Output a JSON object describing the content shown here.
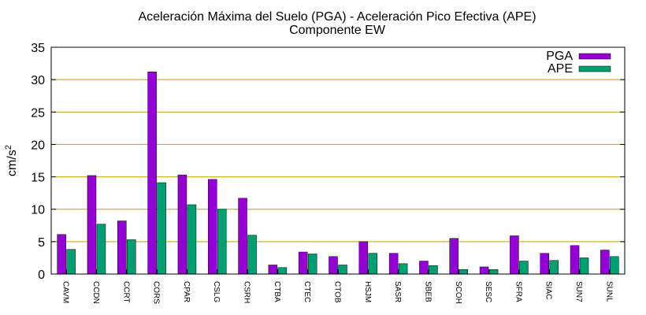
{
  "chart_data": {
    "type": "bar",
    "title": "Aceleración Máxima del Suelo (PGA) -  Aceleración Pico Efectiva (APE)",
    "subtitle": "Componente EW",
    "ylabel": "cm/s",
    "ylabel_sup": "2",
    "ylim": [
      0,
      35
    ],
    "yticks": [
      0,
      5,
      10,
      15,
      20,
      25,
      30,
      35
    ],
    "grid": "horizontal",
    "legend_position": "top-right",
    "categories": [
      "CAVM",
      "CCDN",
      "CCRT",
      "CORS",
      "CPAR",
      "CSLG",
      "CSRH",
      "CTBA",
      "CTEC",
      "CTOB",
      "HSJM",
      "SASR",
      "SBEB",
      "SCOH",
      "SESC",
      "SFRA",
      "SIAC",
      "SUN7",
      "SUNL"
    ],
    "series": [
      {
        "name": "PGA",
        "color": "#9400d3",
        "values": [
          6.1,
          15.2,
          8.2,
          31.2,
          15.3,
          14.6,
          11.7,
          1.4,
          3.4,
          2.7,
          5.0,
          3.2,
          2.0,
          5.5,
          1.1,
          5.9,
          3.2,
          4.4,
          3.7
        ]
      },
      {
        "name": "APE",
        "color": "#009e73",
        "values": [
          3.8,
          7.7,
          5.3,
          14.1,
          10.7,
          10.0,
          6.0,
          1.0,
          3.1,
          1.4,
          3.2,
          1.6,
          1.3,
          0.7,
          0.7,
          2.0,
          2.1,
          2.5,
          2.7
        ]
      }
    ],
    "grid_color": "#c8a000"
  }
}
